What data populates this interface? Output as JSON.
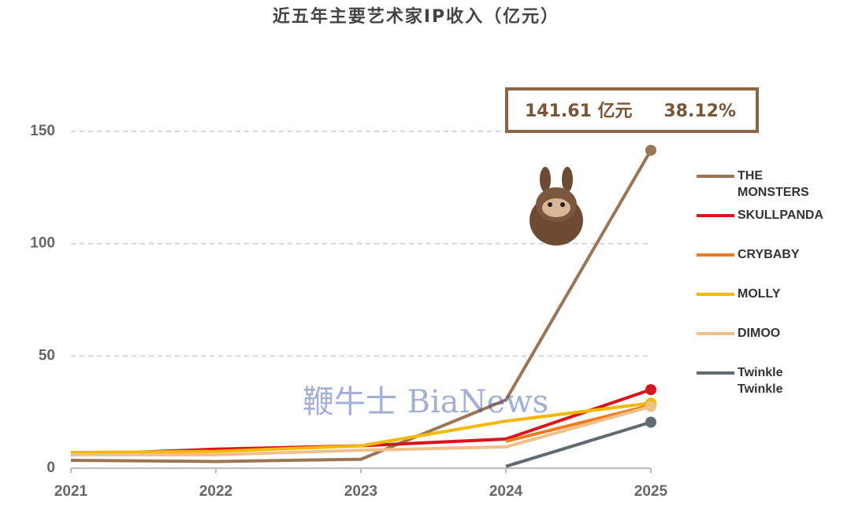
{
  "chart_data": {
    "type": "line",
    "title": "近五年主要艺术家IP收入（亿元）",
    "categories": [
      "2021",
      "2022",
      "2023",
      "2024",
      "2025"
    ],
    "series": [
      {
        "name": "THE MONSTERS",
        "color": "#9a7657",
        "values": [
          3.5,
          3,
          4,
          30.4,
          141.61
        ]
      },
      {
        "name": "SKULLPANDA",
        "color": "#d9141e",
        "values": [
          6,
          8.5,
          10,
          13,
          35
        ]
      },
      {
        "name": "CRYBABY",
        "color": "#f07b1a",
        "values": [
          null,
          null,
          null,
          12,
          28
        ]
      },
      {
        "name": "MOLLY",
        "color": "#f5b800",
        "values": [
          7,
          7.5,
          10,
          21,
          29
        ]
      },
      {
        "name": "DIMOO",
        "color": "#f0c08a",
        "values": [
          6,
          6,
          8,
          9.5,
          27.5
        ]
      },
      {
        "name": "Twinkle Twinkle",
        "color": "#5f6b70",
        "values": [
          null,
          null,
          null,
          0.8,
          20.5
        ]
      }
    ],
    "ylim": [
      0,
      150
    ],
    "yticks": [
      0,
      50,
      100,
      150
    ],
    "grid": true,
    "annotation": {
      "amount": "141.61 亿元",
      "share": "38.12%"
    },
    "watermark": "鞭牛士 BiaNews"
  }
}
